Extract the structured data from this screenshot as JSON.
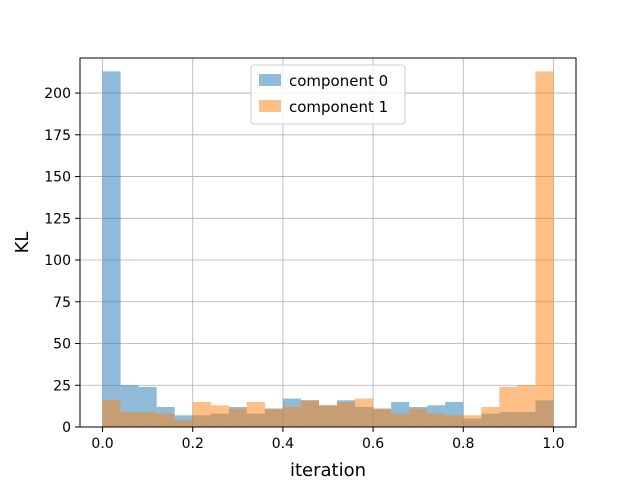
{
  "chart_data": {
    "type": "bar",
    "subtype": "histogram",
    "title": "",
    "xlabel": "iteration",
    "ylabel": "KL",
    "xlim": [
      -0.05,
      1.05
    ],
    "ylim": [
      0,
      221
    ],
    "xticks": [
      "0.0",
      "0.2",
      "0.4",
      "0.6",
      "0.8",
      "1.0"
    ],
    "yticks": [
      "0",
      "25",
      "50",
      "75",
      "100",
      "125",
      "150",
      "175",
      "200"
    ],
    "grid": true,
    "legend_position": "top-center",
    "bin_edges": [
      0.0,
      0.04,
      0.08,
      0.12,
      0.16,
      0.2,
      0.24,
      0.28,
      0.32,
      0.36,
      0.4,
      0.44,
      0.48,
      0.52,
      0.56,
      0.6,
      0.64,
      0.68,
      0.72,
      0.76,
      0.8,
      0.84,
      0.88,
      0.92,
      0.96,
      1.0
    ],
    "series": [
      {
        "name": "component 0",
        "color": "#1f77b4",
        "values": [
          213,
          25,
          24,
          12,
          7,
          7,
          8,
          12,
          8,
          11,
          17,
          16,
          13,
          16,
          12,
          11,
          15,
          12,
          13,
          15,
          5,
          8,
          9,
          9,
          16
        ]
      },
      {
        "name": "component 1",
        "color": "#ff7f0e",
        "values": [
          16,
          9,
          9,
          8,
          4,
          15,
          13,
          11,
          15,
          11,
          12,
          16,
          13,
          15,
          17,
          11,
          8,
          11,
          8,
          7,
          7,
          12,
          24,
          25,
          213
        ]
      }
    ]
  }
}
